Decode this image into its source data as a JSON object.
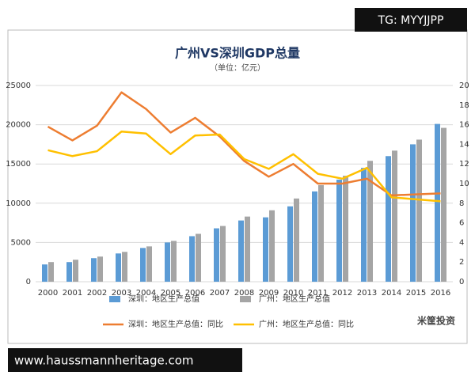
{
  "chart_data": {
    "type": "combo",
    "title": "广州VS深圳GDP总量",
    "subtitle": "（单位：亿元）",
    "categories": [
      "2000",
      "2001",
      "2002",
      "2003",
      "2004",
      "2005",
      "2006",
      "2007",
      "2008",
      "2009",
      "2010",
      "2011",
      "2012",
      "2013",
      "2014",
      "2015",
      "2016"
    ],
    "series": [
      {
        "name": "深圳：地区生产总值",
        "type": "bar",
        "color": "#5b9bd5",
        "values": [
          2200,
          2500,
          3000,
          3600,
          4300,
          5000,
          5800,
          6800,
          7800,
          8200,
          9600,
          11500,
          13000,
          14500,
          16000,
          17500,
          20100
        ]
      },
      {
        "name": "广州：地区生产总值",
        "type": "bar",
        "color": "#a5a5a5",
        "values": [
          2500,
          2800,
          3200,
          3800,
          4500,
          5200,
          6100,
          7100,
          8300,
          9100,
          10600,
          12300,
          13500,
          15400,
          16700,
          18100,
          19600
        ]
      },
      {
        "name": "深圳：地区生产总值：同比",
        "type": "line",
        "axis": "y2",
        "color": "#ed7d31",
        "values": [
          15.8,
          14.4,
          15.9,
          19.3,
          17.6,
          15.2,
          16.7,
          14.8,
          12.3,
          10.7,
          12.0,
          10.0,
          10.0,
          10.5,
          8.8,
          8.9,
          9.0
        ]
      },
      {
        "name": "广州：地区生产总值：同比",
        "type": "line",
        "axis": "y2",
        "color": "#ffc000",
        "values": [
          13.4,
          12.8,
          13.3,
          15.3,
          15.1,
          13.0,
          14.9,
          15.0,
          12.5,
          11.5,
          13.0,
          11.0,
          10.5,
          11.6,
          8.6,
          8.4,
          8.2
        ]
      }
    ],
    "ylim": [
      0,
      25000
    ],
    "yticks": [
      0,
      5000,
      10000,
      15000,
      20000,
      25000
    ],
    "y2lim": [
      0,
      20
    ],
    "y2ticks": [
      0,
      2,
      4,
      6,
      8,
      10,
      12,
      14,
      16,
      18,
      20
    ],
    "grid": true
  },
  "overlays": {
    "tag": "TG: MYYJJPP",
    "url": "www.haussmannheritage.com",
    "logo": "米筐投资"
  }
}
